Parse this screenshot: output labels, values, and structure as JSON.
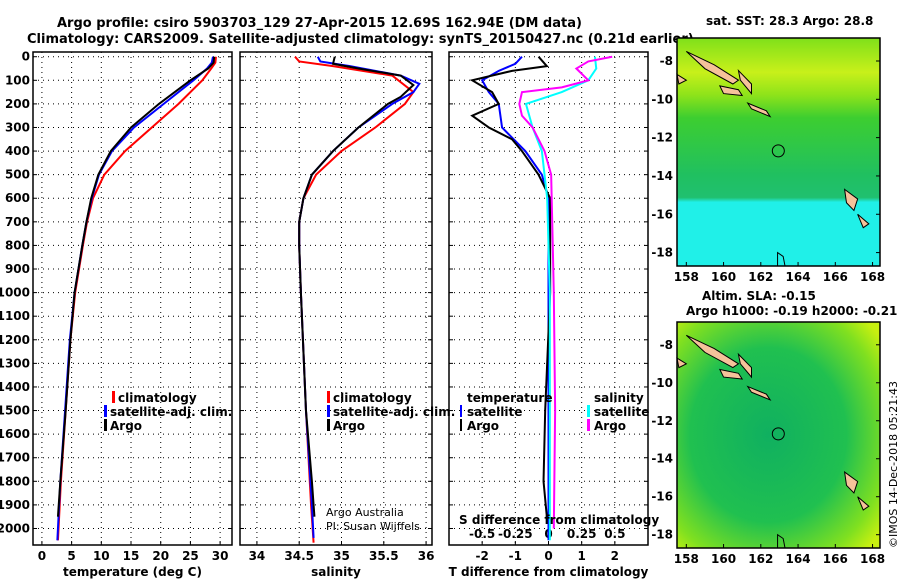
{
  "title_line1": "Argo profile: csiro 5903703_129 27-Apr-2015 12.69S 162.94E (DM data)",
  "title_line2": "Climatology: CARS2009. Satellite-adjusted climatology: synTS_20150427.nc (0.21d earlier)",
  "credit_line1": "Argo Australia",
  "credit_line2": "PI: Susan Wijffels",
  "timestamp": "©IMOS 14-Dec-2018 05:21:43",
  "colors": {
    "climatology": "#ff0000",
    "satellite": "#0000ff",
    "argo": "#000000",
    "s_satellite": "#00ffff",
    "s_argo": "#ff00ff"
  },
  "chart_data": [
    {
      "type": "line",
      "name": "temperature",
      "xlabel": "temperature (deg C)",
      "ylabel": "",
      "xlim": [
        -1.5,
        32
      ],
      "ylim": [
        2070,
        -20
      ],
      "xticks": [
        0,
        5,
        10,
        15,
        20,
        25,
        30
      ],
      "yticks": [
        0,
        100,
        200,
        300,
        400,
        500,
        600,
        700,
        800,
        900,
        1000,
        1100,
        1200,
        1300,
        1400,
        1500,
        1600,
        1700,
        1800,
        1900,
        2000
      ],
      "legend": [
        "climatology",
        "satellite-adj. clim.",
        "Argo"
      ],
      "series": [
        {
          "name": "climatology",
          "color": "#ff0000",
          "x": [
            29.3,
            29.2,
            28.5,
            27,
            23,
            18.5,
            14,
            10.5,
            8.6,
            7.6,
            6.9,
            5.6,
            4.8,
            4.0,
            3.2,
            2.7
          ],
          "y": [
            0,
            25,
            50,
            100,
            200,
            300,
            400,
            500,
            600,
            700,
            800,
            1000,
            1200,
            1500,
            1800,
            2050
          ]
        },
        {
          "name": "satellite-adj. clim.",
          "color": "#0000ff",
          "x": [
            28.8,
            28.6,
            27.8,
            25.5,
            20.5,
            15.5,
            11.8,
            9.6,
            8.4,
            7.5,
            6.8,
            5.5,
            4.7,
            3.9,
            3.1,
            2.6
          ],
          "y": [
            0,
            25,
            50,
            100,
            200,
            300,
            400,
            500,
            600,
            700,
            800,
            1000,
            1200,
            1500,
            1800,
            2050
          ]
        },
        {
          "name": "Argo",
          "color": "#000000",
          "x": [
            29,
            28.9,
            28,
            25,
            19.7,
            15,
            11.6,
            9.5,
            8.3,
            7.5,
            6.8,
            5.5,
            4.8,
            4.0,
            3.1,
            2.7
          ],
          "y": [
            0,
            25,
            50,
            100,
            200,
            300,
            400,
            500,
            600,
            700,
            800,
            1000,
            1200,
            1500,
            1800,
            1950
          ]
        }
      ]
    },
    {
      "type": "line",
      "name": "salinity",
      "xlabel": "salinity",
      "xlim": [
        33.8,
        36.07
      ],
      "ylim": [
        2070,
        -20
      ],
      "xticks": [
        34,
        34.5,
        35,
        35.5,
        36
      ],
      "legend": [
        "climatology",
        "satellite-adj. clim.",
        "Argo"
      ],
      "series": [
        {
          "name": "climatology",
          "color": "#ff0000",
          "x": [
            34.45,
            34.5,
            34.9,
            35.6,
            35.85,
            35.75,
            35.4,
            35.0,
            34.7,
            34.55,
            34.5,
            34.5,
            34.52,
            34.58,
            34.64,
            34.67
          ],
          "y": [
            0,
            20,
            40,
            80,
            150,
            200,
            300,
            400,
            500,
            600,
            700,
            800,
            1000,
            1500,
            1900,
            2060
          ]
        },
        {
          "name": "satellite-adj. clim.",
          "color": "#0000ff",
          "x": [
            34.72,
            34.75,
            35.1,
            35.7,
            35.92,
            35.85,
            35.6,
            35.2,
            34.9,
            34.65,
            34.55,
            34.5,
            34.5,
            34.52,
            34.58,
            34.65,
            34.67
          ],
          "y": [
            0,
            20,
            40,
            80,
            115,
            150,
            200,
            300,
            400,
            500,
            600,
            700,
            800,
            1000,
            1500,
            1900,
            2040
          ]
        },
        {
          "name": "Argo",
          "color": "#000000",
          "x": [
            34.92,
            34.9,
            35.2,
            35.7,
            35.85,
            35.7,
            35.55,
            35.2,
            34.9,
            34.65,
            34.55,
            34.5,
            34.5,
            34.52,
            34.58,
            34.65,
            34.68
          ],
          "y": [
            0,
            30,
            50,
            80,
            120,
            170,
            200,
            300,
            400,
            500,
            600,
            700,
            800,
            1000,
            1500,
            1800,
            1950
          ]
        }
      ]
    },
    {
      "type": "line",
      "name": "difference",
      "xlabel": "T difference from climatology",
      "x2label": "S difference from climatology",
      "xlim": [
        -3,
        3
      ],
      "ylim": [
        2070,
        -20
      ],
      "xticks": [
        -2,
        -1,
        0,
        1,
        2
      ],
      "x2ticks": [
        "-0.5",
        "-0.25",
        "0",
        "0.25",
        "0.5"
      ],
      "legend_t_title": "temperature",
      "legend_s_title": "salinity",
      "legend_t": [
        "satellite",
        "Argo"
      ],
      "legend_s": [
        "satellite",
        "Argo"
      ],
      "series": [
        {
          "name": "T satellite",
          "color": "#0000ff",
          "x": [
            -0.8,
            -1,
            -1.5,
            -2,
            -1.8,
            -1.5,
            -1.4,
            -0.7,
            -0.2,
            0,
            0,
            0,
            0
          ],
          "y": [
            0,
            30,
            60,
            100,
            150,
            200,
            300,
            400,
            500,
            600,
            1000,
            1500,
            2050
          ]
        },
        {
          "name": "T Argo",
          "color": "#000000",
          "x": [
            -0.3,
            -0.05,
            -1.1,
            -2.3,
            -1.7,
            -1.5,
            -2.3,
            -1.8,
            -1.1,
            -0.8,
            -0.3,
            0.05,
            0.05,
            -0.1,
            -0.15,
            -0.05
          ],
          "y": [
            0,
            40,
            60,
            100,
            150,
            200,
            250,
            300,
            350,
            400,
            500,
            600,
            1000,
            1500,
            1800,
            1950
          ]
        },
        {
          "name": "S satellite",
          "color": "#00ffff",
          "x": [
            0.35,
            0.36,
            0.3,
            0.1,
            -0.17,
            -0.12,
            -0.05,
            -0.01,
            0.01,
            0.01,
            0.01
          ],
          "y": [
            0,
            50,
            100,
            150,
            200,
            300,
            400,
            600,
            1000,
            1500,
            2050
          ]
        },
        {
          "name": "S Argo",
          "color": "#ff00ff",
          "x": [
            0.48,
            0.3,
            0.21,
            0.3,
            0.1,
            -0.2,
            -0.22,
            -0.2,
            -0.12,
            -0.03,
            0.02,
            0.04,
            0.05,
            0.04
          ],
          "y": [
            0,
            20,
            50,
            100,
            130,
            150,
            200,
            250,
            300,
            400,
            500,
            1000,
            1500,
            2000
          ]
        }
      ]
    },
    {
      "type": "heatmap",
      "name": "SST map",
      "title": "sat. SST: 28.3 Argo: 28.8",
      "xlim": [
        157.5,
        168.4
      ],
      "ylim": [
        -18.7,
        -6.8
      ],
      "xticks": [
        158,
        160,
        162,
        164,
        166,
        168
      ],
      "yticks": [
        -8,
        -10,
        -12,
        -14,
        -16,
        -18
      ],
      "profile_location": [
        162.94,
        -12.69
      ]
    },
    {
      "type": "heatmap",
      "name": "SLA map",
      "title": "Altim. SLA: -0.15",
      "subtitle": "Argo h1000: -0.19 h2000: -0.21",
      "xlim": [
        157.5,
        168.4
      ],
      "ylim": [
        -18.7,
        -6.8
      ],
      "xticks": [
        158,
        160,
        162,
        164,
        166,
        168
      ],
      "yticks": [
        -8,
        -10,
        -12,
        -14,
        -16,
        -18
      ],
      "profile_location": [
        162.94,
        -12.69
      ]
    }
  ]
}
